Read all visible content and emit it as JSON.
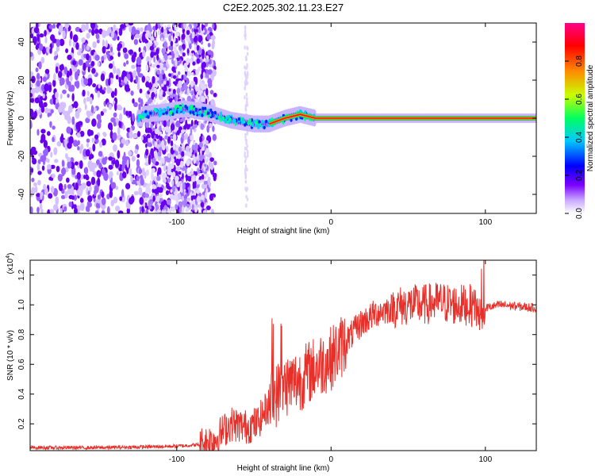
{
  "title": "C2E2.2025.302.11.23.E27",
  "chart_data": [
    {
      "type": "heatmap",
      "xlabel": "Height of straight line (km)",
      "ylabel": "Frequency (Hz)",
      "xlim": [
        -195,
        133
      ],
      "ylim": [
        -50,
        50
      ],
      "xticks": [
        -100,
        0,
        100
      ],
      "yticks": [
        -40,
        -20,
        0,
        20,
        40
      ],
      "colorbar": {
        "label": "Normalized spectral amplitude",
        "range": [
          0,
          1
        ],
        "ticks": [
          0.0,
          0.2,
          0.4,
          0.6,
          0.8
        ],
        "colors": [
          "#ffffff",
          "#7a00ff",
          "#0000ff",
          "#00c8ff",
          "#00ff60",
          "#c8ff00",
          "#ff8800",
          "#ff0000",
          "#ff0088"
        ]
      },
      "carrier_frequency_hz": [
        {
          "height_km": -122,
          "freq_hz": 2
        },
        {
          "height_km": -110,
          "freq_hz": 3
        },
        {
          "height_km": -95,
          "freq_hz": 5
        },
        {
          "height_km": -80,
          "freq_hz": 3
        },
        {
          "height_km": -65,
          "freq_hz": -1
        },
        {
          "height_km": -50,
          "freq_hz": -3
        },
        {
          "height_km": -40,
          "freq_hz": -3
        },
        {
          "height_km": -30,
          "freq_hz": 0
        },
        {
          "height_km": -20,
          "freq_hz": 2
        },
        {
          "height_km": -10,
          "freq_hz": 0
        },
        {
          "height_km": 0,
          "freq_hz": 0
        },
        {
          "height_km": 50,
          "freq_hz": 0
        },
        {
          "height_km": 100,
          "freq_hz": 0
        },
        {
          "height_km": 133,
          "freq_hz": 0
        }
      ]
    },
    {
      "type": "line",
      "xlabel": "Height of straight line (km)",
      "ylabel": "SNR (10 * v/v)",
      "y_multiplier": "(x10",
      "y_multiplier_exp": "4",
      "xlim": [
        -195,
        133
      ],
      "ylim": [
        0.02,
        1.3
      ],
      "xticks": [
        -100,
        0,
        100
      ],
      "yticks": [
        0.2,
        0.4,
        0.6,
        0.8,
        1.0,
        1.2
      ],
      "series": [
        {
          "name": "SNR",
          "color": "#e8302a",
          "points": [
            [
              -195,
              0.04
            ],
            [
              -150,
              0.04
            ],
            [
              -120,
              0.045
            ],
            [
              -100,
              0.05
            ],
            [
              -85,
              0.06
            ],
            [
              -75,
              0.1
            ],
            [
              -65,
              0.2
            ],
            [
              -55,
              0.18
            ],
            [
              -48,
              0.2
            ],
            [
              -42,
              0.3
            ],
            [
              -35,
              0.4
            ],
            [
              -30,
              0.46
            ],
            [
              -20,
              0.5
            ],
            [
              -10,
              0.58
            ],
            [
              0,
              0.64
            ],
            [
              10,
              0.76
            ],
            [
              20,
              0.88
            ],
            [
              30,
              0.95
            ],
            [
              40,
              0.98
            ],
            [
              50,
              1.0
            ],
            [
              60,
              1.0
            ],
            [
              70,
              1.02
            ],
            [
              80,
              1.0
            ],
            [
              90,
              1.0
            ],
            [
              95,
              0.96
            ],
            [
              100,
              0.98
            ],
            [
              110,
              1.0
            ],
            [
              120,
              0.99
            ],
            [
              133,
              0.98
            ]
          ]
        }
      ]
    }
  ]
}
